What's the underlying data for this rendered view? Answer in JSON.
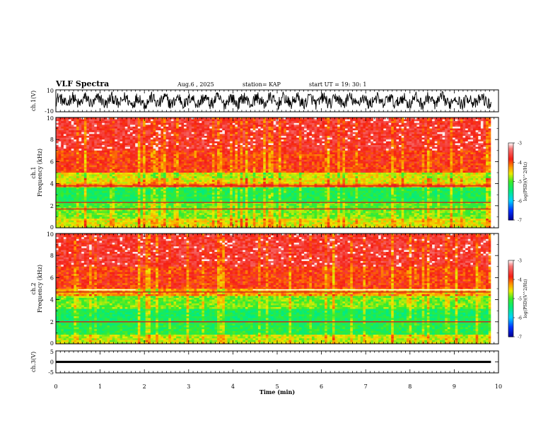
{
  "chart_data": {
    "type": "spectrogram",
    "title": "VLF Spectra",
    "header": {
      "date": "Aug.6 , 2025",
      "station": "station= KAP",
      "start": "start UT = 19: 30: 1"
    },
    "xlabel": "Time (min)",
    "xlim": [
      0,
      10
    ],
    "xticks": [
      "0",
      "1",
      "2",
      "3",
      "4",
      "5",
      "6",
      "7",
      "8",
      "9",
      "10"
    ],
    "panels": [
      {
        "id": "ch1-waveform",
        "type": "line",
        "ylabel": "ch.1(V)",
        "ylim": [
          -10,
          10
        ],
        "yticks": [
          "10",
          "-10"
        ],
        "data_end_min": 9.83
      },
      {
        "id": "ch1-spectrogram",
        "type": "heatmap",
        "ylabel_channel": "ch.1",
        "ylabel": "Frequency (kHz)",
        "ylim": [
          0,
          10
        ],
        "yticks": [
          "0",
          "2",
          "4",
          "6",
          "8",
          "10"
        ],
        "data_end_min": 9.83,
        "bands": [
          {
            "f_lo": 0,
            "f_hi": 0.9,
            "level": -4.6
          },
          {
            "f_lo": 0.9,
            "f_hi": 1.8,
            "level": -4.9
          },
          {
            "f_lo": 1.8,
            "f_hi": 2.4,
            "level": -5.0
          },
          {
            "f_lo": 2.4,
            "f_hi": 3.6,
            "level": -5.25
          },
          {
            "f_lo": 3.6,
            "f_hi": 4.0,
            "level": -4.2
          },
          {
            "f_lo": 4.0,
            "f_hi": 5.0,
            "level": -4.6
          },
          {
            "f_lo": 5.0,
            "f_hi": 7.0,
            "level": -3.9
          },
          {
            "f_lo": 7.0,
            "f_hi": 10.0,
            "level": -3.7
          }
        ],
        "lines_khz": [
          3.8,
          2.3,
          1.7
        ]
      },
      {
        "id": "ch2-spectrogram",
        "type": "heatmap",
        "ylabel_channel": "ch.2",
        "ylabel": "Frequency (kHz)",
        "ylim": [
          0,
          10
        ],
        "yticks": [
          "0",
          "2",
          "4",
          "6",
          "8",
          "10"
        ],
        "data_end_min": 9.83,
        "bands": [
          {
            "f_lo": 0,
            "f_hi": 0.9,
            "level": -4.7
          },
          {
            "f_lo": 0.9,
            "f_hi": 2.0,
            "level": -5.2
          },
          {
            "f_lo": 2.0,
            "f_hi": 3.2,
            "level": -5.3
          },
          {
            "f_lo": 3.2,
            "f_hi": 4.4,
            "level": -4.9
          },
          {
            "f_lo": 4.4,
            "f_hi": 5.0,
            "level": -4.3
          },
          {
            "f_lo": 5.0,
            "f_hi": 7.0,
            "level": -3.9
          },
          {
            "f_lo": 7.0,
            "f_hi": 10.0,
            "level": -3.7
          }
        ],
        "lines_khz": [
          4.7,
          2.0
        ],
        "white_line_khz": 4.7
      },
      {
        "id": "ch3-waveform",
        "type": "line",
        "ylabel": "ch.3(V)",
        "ylim": [
          -5,
          5
        ],
        "yticks": [
          "5",
          "0",
          "-5"
        ],
        "level_band_v": [
          -0.5,
          0.5
        ],
        "data_end_min": 9.83
      }
    ],
    "colorbar": {
      "label": "log(PSD)(V^2/Hz)",
      "ticks": [
        "-3",
        "-4",
        "-5",
        "-6",
        "-7"
      ],
      "range": [
        -7,
        -3
      ]
    }
  }
}
